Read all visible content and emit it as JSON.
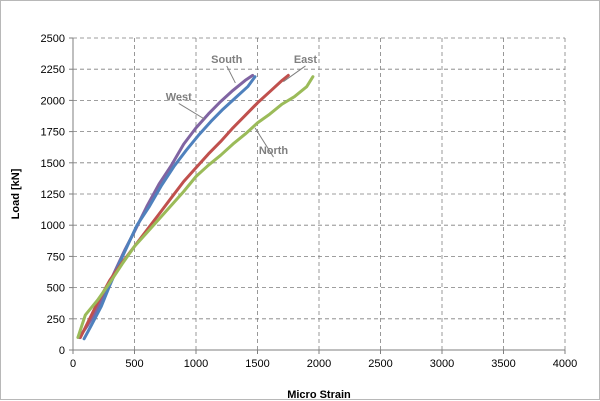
{
  "chart_data": {
    "type": "line",
    "xlabel": "Micro Strain",
    "ylabel": "Load [kN]",
    "xlim": [
      0,
      4000
    ],
    "ylim": [
      0,
      2500
    ],
    "x_ticks": [
      0,
      500,
      1000,
      1500,
      2000,
      2500,
      3000,
      3500,
      4000
    ],
    "y_ticks": [
      0,
      250,
      500,
      750,
      1000,
      1250,
      1500,
      1750,
      2000,
      2250,
      2500
    ],
    "grid": true,
    "colors": {
      "North": "#9bbb59",
      "East": "#c0504d",
      "South": "#8064a2",
      "West": "#4f81bd",
      "label_leader": "#7f7f7f"
    },
    "series": [
      {
        "name": "South",
        "x": [
          50,
          120,
          200,
          280,
          350,
          420,
          500,
          600,
          700,
          800,
          900,
          1000,
          1100,
          1200,
          1300,
          1400,
          1460
        ],
        "y": [
          100,
          200,
          330,
          500,
          650,
          800,
          950,
          1150,
          1330,
          1480,
          1650,
          1780,
          1890,
          1990,
          2080,
          2160,
          2200
        ]
      },
      {
        "name": "West",
        "x": [
          90,
          150,
          230,
          300,
          380,
          450,
          520,
          620,
          720,
          820,
          920,
          1020,
          1120,
          1220,
          1320,
          1420,
          1480
        ],
        "y": [
          90,
          200,
          350,
          520,
          700,
          850,
          1000,
          1150,
          1320,
          1470,
          1600,
          1720,
          1830,
          1930,
          2020,
          2110,
          2190
        ]
      },
      {
        "name": "East",
        "x": [
          60,
          120,
          200,
          300,
          400,
          500,
          600,
          700,
          800,
          900,
          1000,
          1100,
          1200,
          1300,
          1400,
          1500,
          1600,
          1700,
          1750
        ],
        "y": [
          100,
          220,
          380,
          560,
          700,
          830,
          960,
          1090,
          1220,
          1350,
          1460,
          1570,
          1670,
          1780,
          1880,
          1980,
          2070,
          2160,
          2200
        ]
      },
      {
        "name": "North",
        "x": [
          40,
          100,
          200,
          300,
          400,
          500,
          600,
          700,
          800,
          900,
          1000,
          1100,
          1200,
          1300,
          1400,
          1500,
          1600,
          1700,
          1800,
          1900,
          1950
        ],
        "y": [
          100,
          280,
          400,
          540,
          690,
          830,
          940,
          1050,
          1160,
          1270,
          1390,
          1480,
          1560,
          1650,
          1730,
          1820,
          1890,
          1970,
          2030,
          2110,
          2190
        ]
      }
    ],
    "series_labels": [
      {
        "name": "South",
        "text": "South",
        "at": [
          1250,
          2300
        ],
        "points_to": [
          1320,
          2140
        ]
      },
      {
        "name": "East",
        "text": "East",
        "at": [
          1890,
          2300
        ],
        "points_to": [
          1710,
          2150
        ]
      },
      {
        "name": "West",
        "text": "West",
        "at": [
          860,
          2000
        ],
        "points_to": [
          1070,
          1850
        ]
      },
      {
        "name": "North",
        "text": "North",
        "at": [
          1630,
          1570
        ],
        "points_to": [
          1480,
          1780
        ]
      }
    ]
  }
}
